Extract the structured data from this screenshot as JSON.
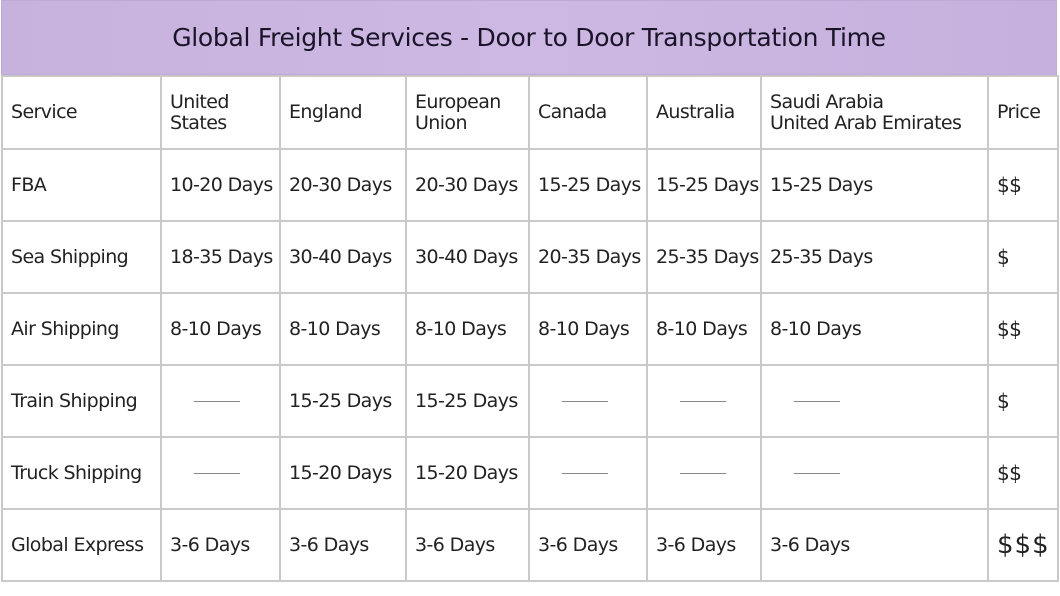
{
  "title": "Global Freight Services - Door to Door Transportation Time",
  "columns": [
    "Service",
    "United States",
    "England",
    "European Union",
    "Canada",
    "Australia",
    "Saudi Arabia United Arab Emirates",
    "Price"
  ],
  "column_lines": [
    [
      "Service"
    ],
    [
      "United",
      "States"
    ],
    [
      "England"
    ],
    [
      "European",
      "Union"
    ],
    [
      "Canada"
    ],
    [
      "Australia"
    ],
    [
      "Saudi Arabia",
      "United Arab Emirates"
    ],
    [
      "Price"
    ]
  ],
  "rows": [
    {
      "service": "FBA",
      "cells": [
        "10-20 Days",
        "20-30 Days",
        "20-30 Days",
        "15-25 Days",
        "15-25 Days",
        "15-25 Days"
      ],
      "price": "$$"
    },
    {
      "service": "Sea Shipping",
      "cells": [
        "18-35 Days",
        "30-40 Days",
        "30-40 Days",
        "20-35 Days",
        "25-35 Days",
        "25-35 Days"
      ],
      "price": "$"
    },
    {
      "service": "Air Shipping",
      "cells": [
        "8-10 Days",
        "8-10 Days",
        "8-10 Days",
        "8-10 Days",
        "8-10 Days",
        "8-10 Days"
      ],
      "price": "$$"
    },
    {
      "service": "Train Shipping",
      "cells": [
        "—",
        "15-25 Days",
        "15-25 Days",
        "—",
        "—",
        "—"
      ],
      "price": "$"
    },
    {
      "service": "Truck Shipping",
      "cells": [
        "—",
        "15-20 Days",
        "15-20 Days",
        "—",
        "—",
        "—"
      ],
      "price": "$$"
    },
    {
      "service": "Global Express",
      "cells": [
        "3-6 Days",
        "3-6 Days",
        "3-6 Days",
        "3-6 Days",
        "3-6 Days",
        "3-6 Days"
      ],
      "price": "$$$"
    }
  ],
  "colors": {
    "title_bg": "#c9b4e0",
    "border": "#c9c9c9"
  }
}
